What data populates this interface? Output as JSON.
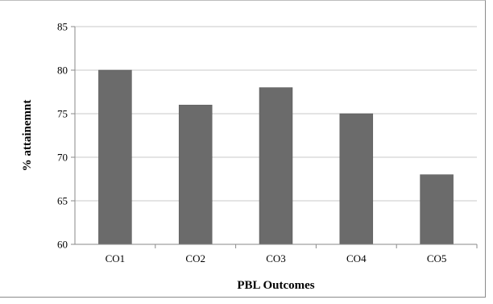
{
  "chart_data": {
    "type": "bar",
    "categories": [
      "CO1",
      "CO2",
      "CO3",
      "CO4",
      "CO5"
    ],
    "values": [
      80,
      76,
      78,
      75,
      68
    ],
    "xlabel": "PBL Outcomes",
    "ylabel": "% attainemnt",
    "ylim": [
      60,
      85
    ],
    "yticks": [
      60,
      65,
      70,
      75,
      80,
      85
    ],
    "grid": true,
    "legend": "none",
    "colors": {
      "bar": "#6b6b6b",
      "grid": "#c8c8c8",
      "axis": "#8a8a8a"
    }
  }
}
